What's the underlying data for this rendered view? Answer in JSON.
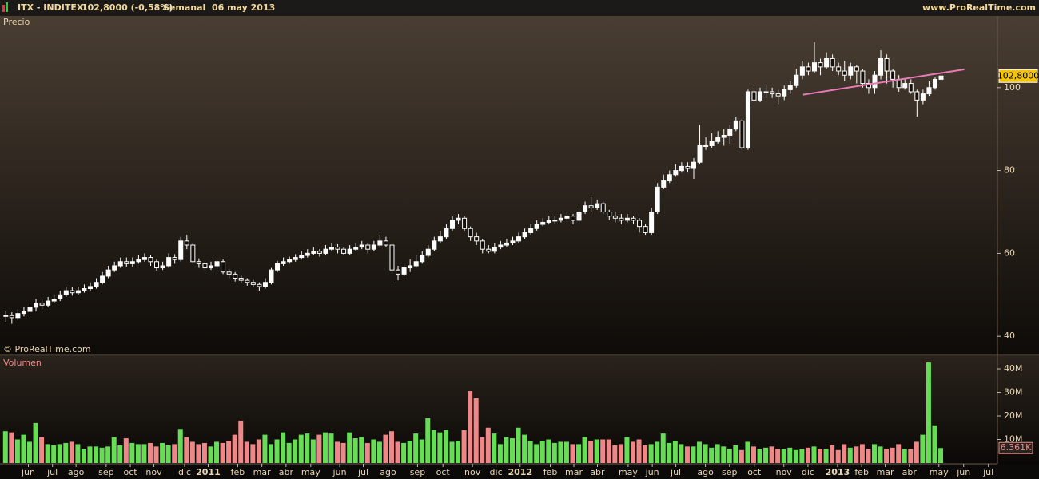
{
  "header": {
    "symbol": "ITX - INDITEX",
    "quote": "102,8000 (-0,58%)",
    "period": "Semanal  06 may 2013",
    "site": "www.ProRealTime.com"
  },
  "chart_data": [
    {
      "type": "candlestick",
      "title": "Precio",
      "credit": "© ProRealTime.com",
      "open": [
        44.8,
        45,
        44.5,
        45.5,
        46,
        47,
        48,
        47.5,
        48.5,
        49,
        50,
        51,
        50.5,
        51,
        51.5,
        52,
        53,
        54.5,
        56,
        57,
        58,
        57.5,
        58,
        58.5,
        59,
        58,
        56.5,
        57,
        59,
        58.5,
        63,
        62,
        58,
        57.5,
        56.5,
        57,
        58,
        55.5,
        55,
        54,
        53.5,
        53,
        52.5,
        52,
        53,
        56,
        57.5,
        58,
        58.5,
        59,
        59.5,
        60,
        60.5,
        60,
        61,
        61.5,
        61,
        60,
        61,
        61.5,
        62,
        61,
        62,
        63,
        62,
        56,
        55,
        56.5,
        57,
        58,
        59.5,
        61,
        63,
        64,
        66,
        68,
        68.5,
        66,
        64,
        63,
        61,
        60.5,
        61.5,
        62,
        62.5,
        63,
        64,
        65,
        66,
        67,
        67.5,
        68,
        68,
        68.5,
        69,
        68,
        70,
        71.5,
        71,
        72,
        70,
        69,
        68.5,
        68,
        68.5,
        68,
        66.5,
        65,
        70,
        76,
        77.5,
        79,
        80,
        81,
        80.5,
        82,
        86,
        86,
        87,
        88,
        88.5,
        90,
        92,
        85.5,
        99,
        97,
        99,
        99,
        98.5,
        98,
        99.5,
        100.5,
        103,
        105,
        104,
        106,
        105,
        107,
        105,
        104,
        103,
        105,
        104,
        101,
        100,
        103,
        107,
        104,
        102,
        100,
        101,
        99,
        97,
        98.5,
        100,
        102
      ],
      "high": [
        46,
        45.8,
        46.5,
        47,
        48,
        49,
        48.8,
        49.5,
        50,
        51,
        52,
        51.8,
        52,
        52.5,
        53,
        54,
        55.5,
        57,
        58,
        59,
        59,
        59,
        59.5,
        60,
        59.5,
        58.5,
        58,
        60,
        59.8,
        64,
        64.5,
        62.5,
        58.8,
        58,
        58,
        59,
        58.5,
        56.2,
        55.5,
        54.8,
        54,
        53.6,
        53,
        54,
        56.5,
        58.2,
        59,
        59.2,
        59.8,
        60.5,
        61,
        61.5,
        61,
        62,
        62.5,
        62.2,
        61.5,
        62,
        62.5,
        63,
        62.5,
        63,
        64.5,
        64,
        62.5,
        57,
        57.5,
        58.5,
        59.5,
        60.5,
        62,
        64,
        65.5,
        67,
        69,
        69.5,
        69,
        66.5,
        65,
        63.5,
        62,
        62.5,
        63,
        63.5,
        64,
        65,
        66,
        67,
        68,
        68.5,
        69,
        69,
        69.5,
        70,
        69.5,
        71,
        72.5,
        73.5,
        73,
        72.5,
        70.5,
        70,
        69.5,
        69.5,
        69,
        68.5,
        67,
        71,
        77,
        79,
        80,
        81.5,
        82,
        82,
        83,
        91,
        88,
        89,
        89.5,
        90,
        91,
        93,
        92.5,
        99.5,
        100,
        100,
        100.5,
        100,
        99.5,
        100.5,
        101.5,
        104.5,
        106.5,
        106,
        111,
        107,
        108.5,
        108,
        106,
        106.5,
        106,
        105.5,
        104.5,
        102,
        104,
        109,
        108,
        104.5,
        103,
        102,
        102,
        99.5,
        99.5,
        101.5,
        102.5,
        103.5
      ],
      "low": [
        43.5,
        43,
        43.8,
        44.8,
        45.2,
        46,
        46.5,
        47,
        48,
        48.5,
        49.5,
        49.8,
        50,
        50.5,
        51,
        51.5,
        52.5,
        54,
        55.5,
        56.5,
        56.8,
        56.8,
        57.5,
        58,
        57,
        55.8,
        56,
        56.5,
        57.5,
        58,
        61,
        57.5,
        56.5,
        55.8,
        56,
        56.5,
        55,
        54,
        53.2,
        52.8,
        52.2,
        51.8,
        51,
        51.5,
        52.5,
        55.5,
        57,
        57.5,
        58,
        58.5,
        59,
        59.5,
        59.2,
        59.5,
        60.5,
        60,
        59.5,
        59.5,
        60.5,
        61,
        60,
        60.5,
        61.5,
        61.5,
        53,
        53.5,
        54.5,
        55.5,
        56.5,
        57.5,
        59,
        60.5,
        62.5,
        63.5,
        65.5,
        67,
        65.5,
        63,
        62,
        60,
        60,
        60,
        61,
        61.5,
        62,
        62.5,
        63.5,
        64.5,
        65.5,
        66.5,
        67,
        67.2,
        67.5,
        68,
        67,
        67.5,
        69.5,
        70,
        70.5,
        69.5,
        68,
        67.5,
        67,
        67.5,
        67,
        65,
        64.5,
        64.5,
        69.5,
        75.5,
        77,
        78.5,
        79.5,
        79.5,
        78,
        81.5,
        85,
        85.5,
        86.5,
        86,
        86.5,
        89.5,
        85,
        85,
        96,
        96.5,
        97.5,
        97.5,
        96,
        97,
        98.5,
        100,
        102,
        103,
        103.5,
        103,
        104.5,
        104,
        103,
        101.5,
        102,
        101,
        100,
        98.5,
        98.5,
        102,
        101,
        100,
        99,
        99.5,
        98.5,
        93,
        96,
        98,
        99.5,
        101.5
      ],
      "close": [
        45,
        44.5,
        45.5,
        46,
        47,
        48,
        47.5,
        48.5,
        49,
        50,
        51,
        50.5,
        51,
        51.5,
        52,
        53,
        54.5,
        56,
        57,
        58,
        57.5,
        58,
        58.5,
        59,
        58,
        56.5,
        57,
        59,
        58.5,
        63,
        62,
        58,
        57.5,
        56.5,
        57,
        58,
        55.5,
        55,
        54,
        53.5,
        53,
        52.5,
        52,
        53,
        56,
        57.5,
        58,
        58.5,
        59,
        59.5,
        60,
        60.5,
        60,
        61,
        61.5,
        61,
        60,
        61,
        61.5,
        62,
        61,
        62,
        63,
        62,
        56,
        55,
        56.5,
        57,
        58,
        59.5,
        61,
        63,
        64,
        66,
        68,
        68.5,
        66,
        64,
        63,
        61,
        60.5,
        61.5,
        62,
        62.5,
        63,
        64,
        65,
        66,
        67,
        67.5,
        68,
        68,
        68.5,
        69,
        68,
        70,
        71.5,
        71,
        72,
        70,
        69,
        68.5,
        68,
        68.5,
        68,
        66.5,
        65,
        70,
        76,
        77.5,
        79,
        80,
        81,
        80.5,
        82,
        86,
        86,
        87,
        88,
        88.5,
        90,
        92,
        85.5,
        99,
        97,
        99,
        99,
        98.5,
        98,
        99.5,
        100.5,
        103,
        105,
        104,
        106,
        105,
        107,
        105,
        104,
        103,
        105,
        104,
        101,
        100,
        103,
        107,
        104,
        102,
        100,
        101,
        99,
        97,
        98.5,
        100,
        102,
        102.8
      ],
      "up_color": "#ffffff",
      "down_color": "#120d09",
      "xlim": [
        -0.9,
        164.4
      ],
      "ylim": [
        35.8,
        117.3
      ],
      "yticks": [
        40,
        60,
        80,
        100
      ],
      "last_price": {
        "value": 102.8,
        "label": "102,8000"
      },
      "trendline": {
        "x": [
          132.2,
          158.9
        ],
        "y": [
          98.3,
          104.4
        ],
        "color": "#e87ab8"
      }
    },
    {
      "type": "bar",
      "title": "Volumen",
      "values": [
        13.5,
        13,
        10,
        12,
        9,
        17,
        11,
        8,
        7.5,
        8,
        8.5,
        9,
        8,
        6,
        7,
        7,
        6.5,
        7,
        11,
        7.5,
        10.5,
        8.5,
        8,
        8,
        8.5,
        7,
        8.5,
        7.5,
        8,
        14.5,
        11,
        9,
        8,
        8.5,
        7,
        9,
        8.5,
        9.5,
        12,
        18,
        9,
        8,
        10,
        12,
        8,
        10,
        13,
        8.5,
        10,
        12,
        12.5,
        10,
        12,
        13,
        12.5,
        9,
        8.5,
        13,
        10.5,
        11,
        8.5,
        10,
        9,
        12,
        13.5,
        9,
        8.5,
        9.5,
        12.5,
        10,
        19,
        14,
        13,
        14,
        9,
        9.5,
        14,
        30.5,
        27.5,
        11,
        15,
        12.5,
        8,
        11,
        10.5,
        15,
        12,
        9.5,
        8,
        9.5,
        10,
        8.5,
        9,
        9,
        8,
        8,
        11,
        9.5,
        10,
        10,
        10,
        7.5,
        8,
        11,
        9,
        10,
        7.5,
        8,
        9,
        12.5,
        8.5,
        9.5,
        8,
        7,
        7,
        9,
        8,
        6.5,
        8,
        7,
        6,
        7.5,
        5.5,
        9,
        7,
        6,
        6.5,
        7,
        6,
        6,
        6.5,
        5.5,
        6,
        6.5,
        7,
        6,
        6,
        7.5,
        5.5,
        8,
        6.5,
        7,
        8,
        6,
        8,
        7,
        6,
        6.5,
        8,
        6,
        6,
        9,
        12,
        42.7,
        16,
        6.361
      ],
      "up_color": "#66dd55",
      "down_color": "#ee8888",
      "xlim": [
        -0.9,
        164.4
      ],
      "ylim": [
        0,
        45.1
      ],
      "yticks": [
        {
          "value": 10,
          "label": "10M"
        },
        {
          "value": 20,
          "label": "20M"
        },
        {
          "value": 30,
          "label": "30M"
        },
        {
          "value": 40,
          "label": "40M"
        }
      ],
      "xticks": [
        {
          "value": 3.8,
          "label": "jun"
        },
        {
          "value": 7.8,
          "label": "jul"
        },
        {
          "value": 11.7,
          "label": "ago"
        },
        {
          "value": 16.7,
          "label": "sep"
        },
        {
          "value": 20.7,
          "label": "oct"
        },
        {
          "value": 24.6,
          "label": "nov"
        },
        {
          "value": 29.7,
          "label": "dic"
        },
        {
          "value": 33.6,
          "label": "2011"
        },
        {
          "value": 38.5,
          "label": "feb"
        },
        {
          "value": 42.5,
          "label": "mar"
        },
        {
          "value": 46.5,
          "label": "abr"
        },
        {
          "value": 50.6,
          "label": "may"
        },
        {
          "value": 55.4,
          "label": "jun"
        },
        {
          "value": 59.3,
          "label": "jul"
        },
        {
          "value": 63.4,
          "label": "ago"
        },
        {
          "value": 68.3,
          "label": "sep"
        },
        {
          "value": 72.5,
          "label": "oct"
        },
        {
          "value": 77.4,
          "label": "nov"
        },
        {
          "value": 81.3,
          "label": "dic"
        },
        {
          "value": 85.3,
          "label": "2012"
        },
        {
          "value": 90.3,
          "label": "feb"
        },
        {
          "value": 94.2,
          "label": "mar"
        },
        {
          "value": 98.1,
          "label": "abr"
        },
        {
          "value": 103.2,
          "label": "may"
        },
        {
          "value": 107.2,
          "label": "jun"
        },
        {
          "value": 111.1,
          "label": "jul"
        },
        {
          "value": 116.0,
          "label": "ago"
        },
        {
          "value": 120.0,
          "label": "sep"
        },
        {
          "value": 124.1,
          "label": "oct"
        },
        {
          "value": 129.0,
          "label": "nov"
        },
        {
          "value": 133.0,
          "label": "dic"
        },
        {
          "value": 137.9,
          "label": "2013"
        },
        {
          "value": 141.9,
          "label": "feb"
        },
        {
          "value": 145.8,
          "label": "mar"
        },
        {
          "value": 149.8,
          "label": "abr"
        },
        {
          "value": 154.7,
          "label": "may"
        },
        {
          "value": 158.8,
          "label": "jun"
        },
        {
          "value": 162.9,
          "label": "jul"
        }
      ],
      "last_value": {
        "value": 6.361,
        "label": "6.361K"
      }
    }
  ]
}
